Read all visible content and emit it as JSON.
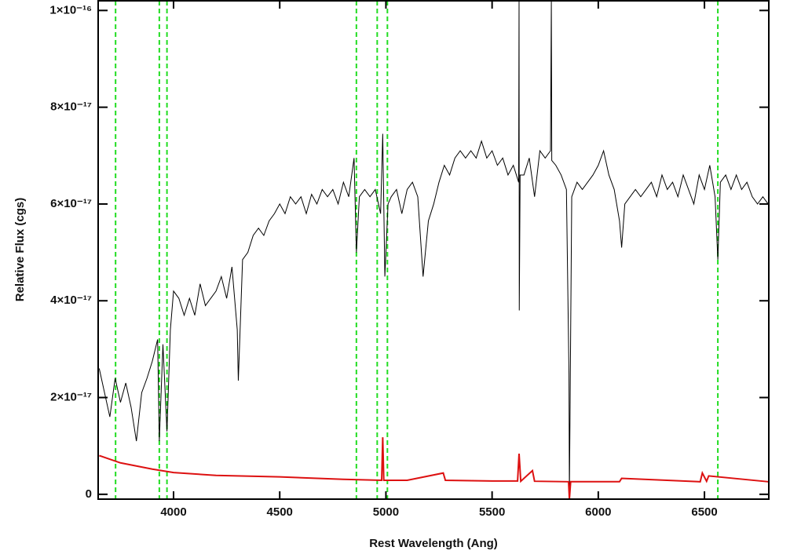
{
  "chart_data": {
    "type": "line",
    "xlabel": "Rest Wavelength (Ang)",
    "ylabel": "Relative Flux (cgs)",
    "xlim": [
      3645,
      6803
    ],
    "ylim": [
      -1e-18,
      1.02e-16
    ],
    "xticks": [
      4000,
      4500,
      5000,
      5500,
      6000,
      6500
    ],
    "yticks": [
      0,
      {
        "value": 2e-17,
        "label": "2×10⁻¹⁷"
      },
      {
        "value": 4e-17,
        "label": "4×10⁻¹⁷"
      },
      {
        "value": 6e-17,
        "label": "6×10⁻¹⁷"
      },
      {
        "value": 8e-17,
        "label": "8×10⁻¹⁷"
      },
      {
        "value": 1e-16,
        "label": "1×10⁻¹⁶"
      }
    ],
    "reference_lines": [
      3727,
      3933,
      3969,
      4861,
      4959,
      5007,
      6563
    ],
    "reference_color": "#22dd22",
    "series": [
      {
        "color": "#000000",
        "x": [
          3650,
          3675,
          3700,
          3725,
          3750,
          3775,
          3800,
          3825,
          3850,
          3875,
          3900,
          3925,
          3933,
          3950,
          3969,
          3985,
          4000,
          4025,
          4050,
          4075,
          4100,
          4125,
          4150,
          4175,
          4200,
          4225,
          4250,
          4275,
          4300,
          4305,
          4325,
          4350,
          4375,
          4400,
          4425,
          4450,
          4475,
          4500,
          4525,
          4550,
          4575,
          4600,
          4625,
          4650,
          4675,
          4700,
          4725,
          4750,
          4775,
          4800,
          4825,
          4850,
          4861,
          4875,
          4900,
          4925,
          4950,
          4975,
          4985,
          4995,
          5010,
          5025,
          5050,
          5075,
          5100,
          5125,
          5150,
          5175,
          5200,
          5225,
          5250,
          5275,
          5300,
          5325,
          5350,
          5375,
          5400,
          5425,
          5450,
          5475,
          5500,
          5525,
          5550,
          5575,
          5600,
          5625,
          5627,
          5628,
          5632,
          5650,
          5675,
          5700,
          5725,
          5750,
          5775,
          5779,
          5781,
          5800,
          5825,
          5850,
          5862,
          5864,
          5875,
          5900,
          5925,
          5950,
          5975,
          6000,
          6025,
          6050,
          6075,
          6100,
          6110,
          6125,
          6150,
          6175,
          6200,
          6225,
          6250,
          6275,
          6300,
          6325,
          6350,
          6375,
          6400,
          6425,
          6450,
          6475,
          6500,
          6525,
          6550,
          6563,
          6575,
          6600,
          6625,
          6650,
          6675,
          6700,
          6725,
          6750,
          6775,
          6800
        ],
        "values": [
          2.6e-17,
          2.1e-17,
          1.6e-17,
          2.4e-17,
          1.9e-17,
          2.3e-17,
          1.8e-17,
          1.1e-17,
          2.1e-17,
          2.4e-17,
          2.75e-17,
          3.2e-17,
          1.1e-17,
          3.1e-17,
          1.3e-17,
          3.4e-17,
          4.2e-17,
          4.05e-17,
          3.7e-17,
          4.05e-17,
          3.7e-17,
          4.35e-17,
          3.9e-17,
          4.05e-17,
          4.2e-17,
          4.5e-17,
          4.05e-17,
          4.7e-17,
          3.4e-17,
          2.35e-17,
          4.85e-17,
          5e-17,
          5.35e-17,
          5.5e-17,
          5.35e-17,
          5.65e-17,
          5.8e-17,
          6e-17,
          5.8e-17,
          6.15e-17,
          6e-17,
          6.15e-17,
          5.8e-17,
          6.2e-17,
          6e-17,
          6.3e-17,
          6.15e-17,
          6.3e-17,
          6e-17,
          6.45e-17,
          6.15e-17,
          6.95e-17,
          5e-17,
          6.15e-17,
          6.3e-17,
          6.15e-17,
          6.3e-17,
          5.8e-17,
          7.45e-17,
          4.5e-17,
          6e-17,
          6.15e-17,
          6.3e-17,
          5.8e-17,
          6.3e-17,
          6.45e-17,
          6.15e-17,
          4.5e-17,
          5.65e-17,
          6e-17,
          6.45e-17,
          6.8e-17,
          6.6e-17,
          6.95e-17,
          7.1e-17,
          6.95e-17,
          7.1e-17,
          6.95e-17,
          7.3e-17,
          6.95e-17,
          7.1e-17,
          6.8e-17,
          6.95e-17,
          6.6e-17,
          6.8e-17,
          6.45e-17,
          1.02e-16,
          3.8e-17,
          6.6e-17,
          6.6e-17,
          6.95e-17,
          6.15e-17,
          7.1e-17,
          6.95e-17,
          7.1e-17,
          1.02e-16,
          6.9e-17,
          6.8e-17,
          6.6e-17,
          6.3e-17,
          2.5e-17,
          0,
          6.15e-17,
          6.45e-17,
          6.3e-17,
          6.45e-17,
          6.6e-17,
          6.8e-17,
          7.1e-17,
          6.6e-17,
          6.3e-17,
          5.65e-17,
          5.1e-17,
          6e-17,
          6.15e-17,
          6.3e-17,
          6.15e-17,
          6.3e-17,
          6.45e-17,
          6.15e-17,
          6.6e-17,
          6.3e-17,
          6.45e-17,
          6.15e-17,
          6.6e-17,
          6.3e-17,
          6e-17,
          6.6e-17,
          6.3e-17,
          6.8e-17,
          6.15e-17,
          4.85e-17,
          6.45e-17,
          6.6e-17,
          6.3e-17,
          6.6e-17,
          6.3e-17,
          6.45e-17,
          6.15e-17,
          6e-17,
          6.15e-17,
          6e-17
        ]
      },
      {
        "color": "#dd1111",
        "x": [
          3650,
          3750,
          3900,
          4000,
          4200,
          4500,
          4800,
          4980,
          4985,
          4990,
          5100,
          5270,
          5280,
          5500,
          5620,
          5627,
          5635,
          5690,
          5700,
          5860,
          5864,
          5870,
          6100,
          6110,
          6480,
          6490,
          6510,
          6520,
          6800
        ],
        "values": [
          8e-18,
          6.5e-18,
          5.2e-18,
          4.5e-18,
          3.9e-18,
          3.6e-18,
          3.1e-18,
          2.9e-18,
          1.18e-17,
          2.9e-18,
          2.9e-18,
          4.4e-18,
          2.9e-18,
          2.75e-18,
          2.75e-18,
          8.4e-18,
          2.7e-18,
          4.9e-18,
          2.7e-18,
          2.6e-18,
          -1e-18,
          2.6e-18,
          2.6e-18,
          3.3e-18,
          2.6e-18,
          4.4e-18,
          2.7e-18,
          3.8e-18,
          2.6e-18
        ]
      }
    ]
  }
}
